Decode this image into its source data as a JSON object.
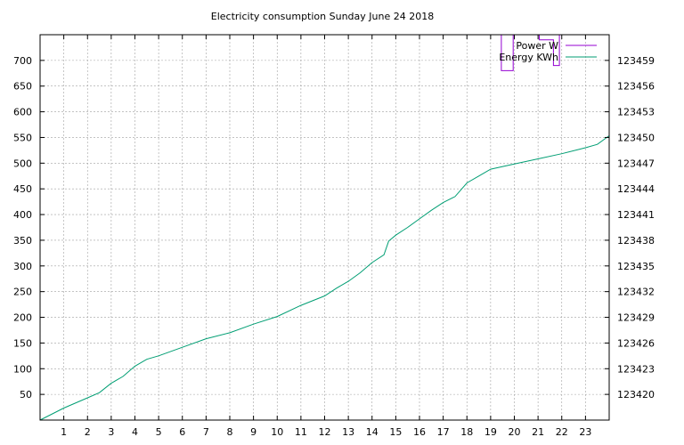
{
  "chart_data": {
    "type": "line",
    "title": "Electricity consumption Sunday June 24 2018",
    "xlabel": "",
    "ylabel": "",
    "y2label": "",
    "xlim": [
      0,
      24
    ],
    "ylim": [
      0,
      750
    ],
    "y2lim": [
      123417,
      123462
    ],
    "x_ticks": [
      1,
      2,
      3,
      4,
      5,
      6,
      7,
      8,
      9,
      10,
      11,
      12,
      13,
      14,
      15,
      16,
      17,
      18,
      19,
      20,
      21,
      22,
      23
    ],
    "y_ticks": [
      50,
      100,
      150,
      200,
      250,
      300,
      350,
      400,
      450,
      500,
      550,
      600,
      650,
      700
    ],
    "y2_ticks": [
      123420,
      123423,
      123426,
      123429,
      123432,
      123435,
      123438,
      123441,
      123444,
      123447,
      123450,
      123453,
      123456,
      123459
    ],
    "grid": true,
    "legend_position": "top-right",
    "series": [
      {
        "name": "Power W",
        "axis": "y",
        "color": "#9400d3",
        "x": [
          19.45,
          19.45,
          19.95,
          19.95,
          21.05,
          21.05,
          21.65,
          21.65,
          21.9,
          21.9
        ],
        "values": [
          750,
          680,
          680,
          750,
          750,
          740,
          740,
          690,
          690,
          750
        ]
      },
      {
        "name": "Energy KWh",
        "axis": "y2",
        "color": "#009e73",
        "x": [
          0,
          1,
          2,
          2.5,
          3,
          3.5,
          4,
          4.5,
          5,
          6,
          7,
          8,
          9,
          10,
          11,
          12,
          12.5,
          13,
          13.5,
          14,
          14.5,
          14.7,
          15,
          15.5,
          16,
          16.5,
          17,
          17.5,
          18,
          18.5,
          19,
          20,
          21,
          22,
          23,
          23.5,
          24
        ],
        "values": [
          123417,
          123418.4,
          123419.6,
          123420.2,
          123421.3,
          123422.1,
          123423.3,
          123424.1,
          123424.5,
          123425.5,
          123426.5,
          123427.2,
          123428.2,
          123429.1,
          123430.4,
          123431.5,
          123432.4,
          123433.2,
          123434.2,
          123435.4,
          123436.3,
          123437.9,
          123438.6,
          123439.5,
          123440.5,
          123441.5,
          123442.4,
          123443.1,
          123444.7,
          123445.5,
          123446.3,
          123446.9,
          123447.5,
          123448.1,
          123448.8,
          123449.2,
          123450.2
        ]
      }
    ]
  }
}
